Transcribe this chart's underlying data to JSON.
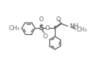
{
  "bg_color": "#ffffff",
  "line_color": "#606060",
  "line_width": 1.0,
  "font_size": 6.5,
  "text_color": "#606060",
  "xlim": [
    0,
    10
  ],
  "ylim": [
    0,
    7
  ]
}
